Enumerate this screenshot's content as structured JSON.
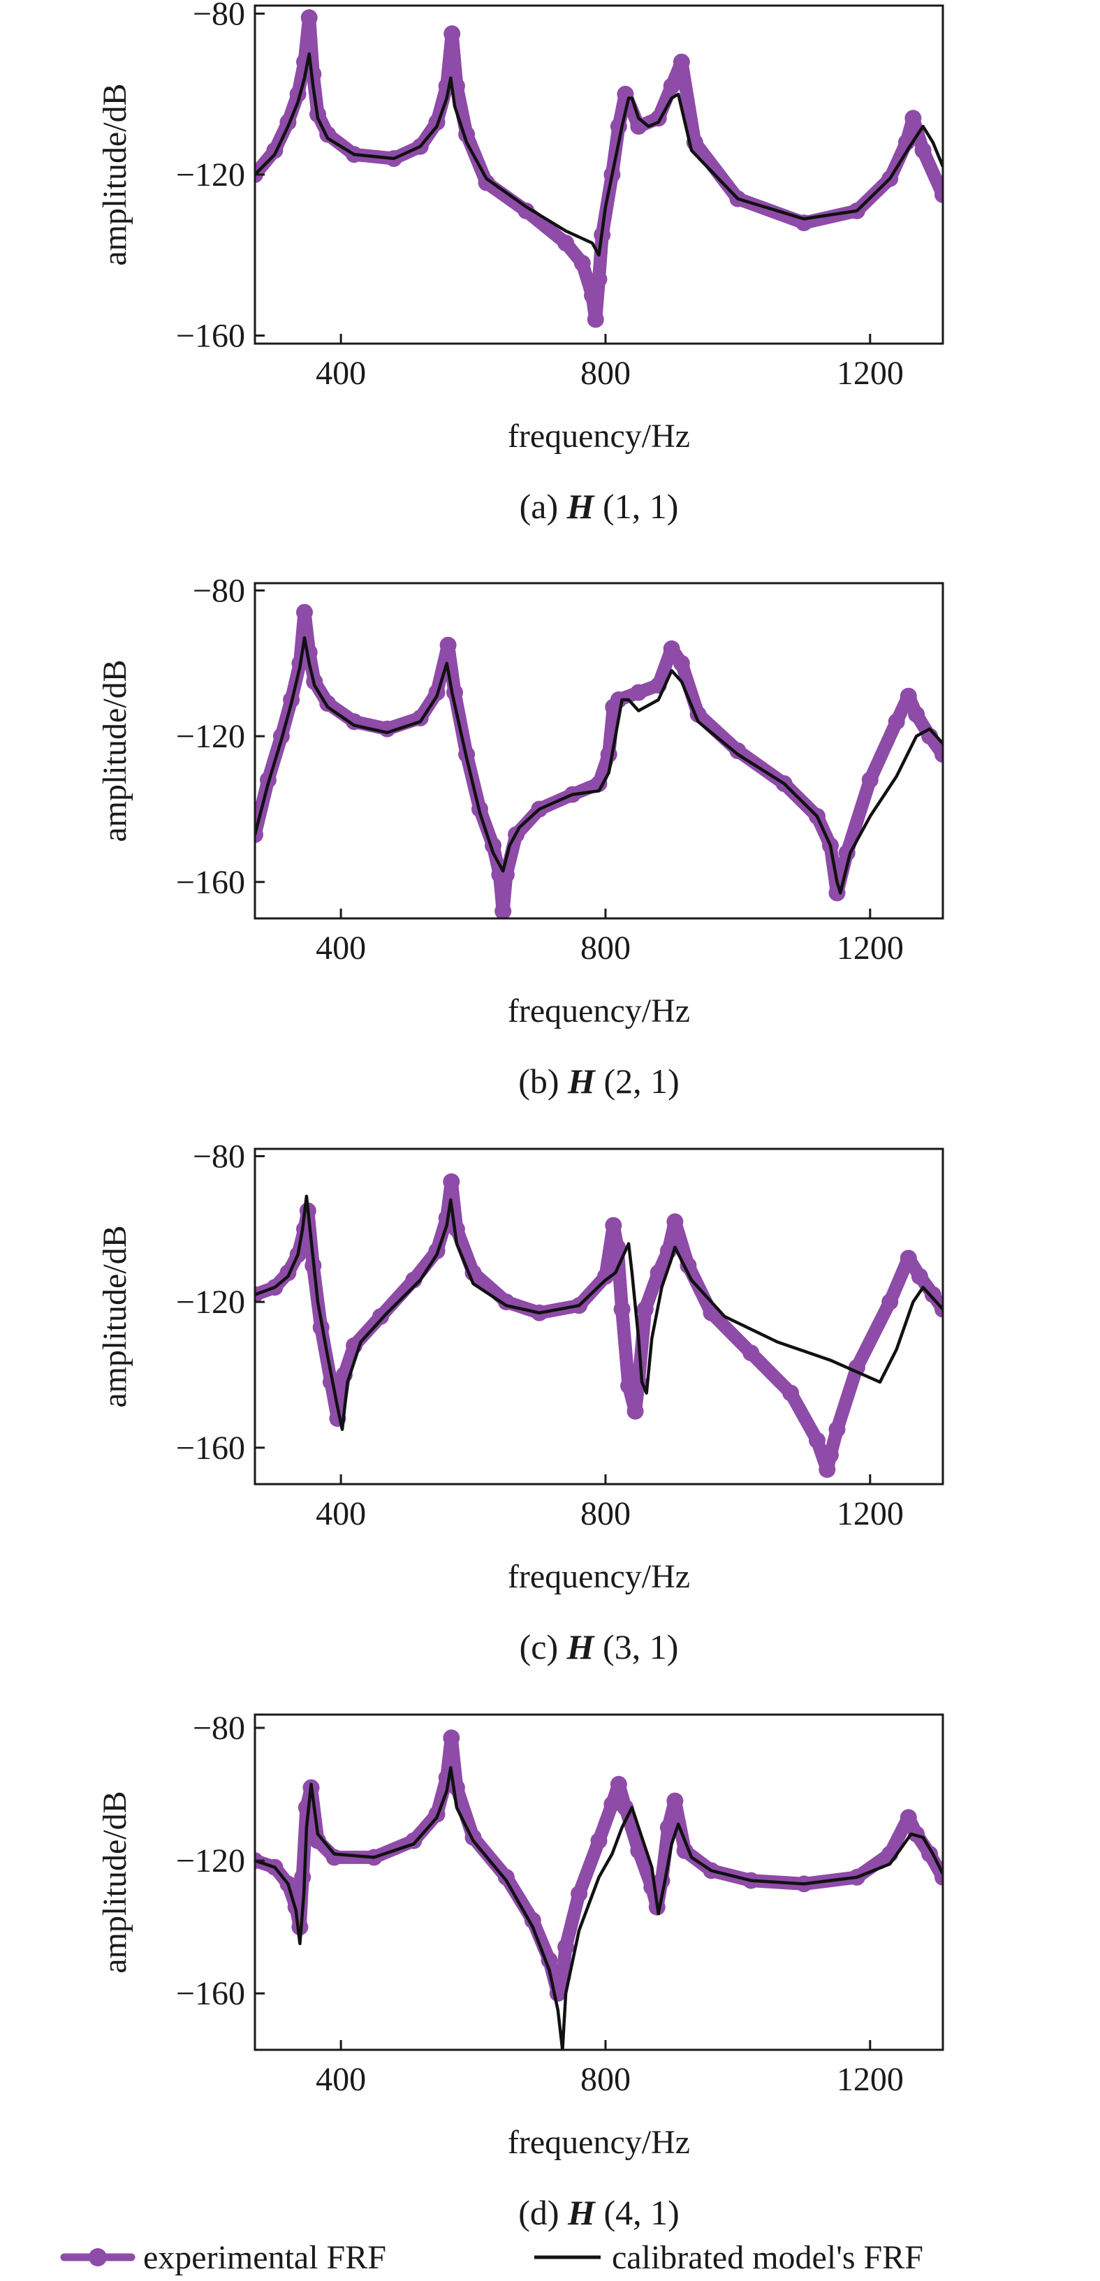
{
  "legend": {
    "items": [
      {
        "label": "experimental FRF",
        "color": "#8e4ba8"
      },
      {
        "label": "calibrated model's FRF",
        "color": "#111111"
      }
    ]
  },
  "chart_data": [
    {
      "type": "line",
      "caption_prefix": "(a) ",
      "caption_symbol": "H",
      "caption_suffix": " (1, 1)",
      "xlabel": "frequency/Hz",
      "ylabel": "amplitude/dB",
      "xlim": [
        270,
        1310
      ],
      "ylim": [
        -162,
        -78
      ],
      "xticks": [
        400,
        800,
        1200
      ],
      "yticks": [
        -80,
        -120,
        -160
      ],
      "grid": false,
      "series": [
        {
          "name": "experimental FRF",
          "style": "thick-dots",
          "x": [
            270,
            300,
            320,
            335,
            345,
            352,
            358,
            365,
            380,
            420,
            480,
            520,
            545,
            560,
            568,
            575,
            590,
            620,
            680,
            740,
            765,
            780,
            785,
            790,
            795,
            810,
            820,
            830,
            850,
            880,
            900,
            915,
            935,
            1000,
            1100,
            1180,
            1230,
            1255,
            1265,
            1280,
            1310
          ],
          "y": [
            -120,
            -114,
            -107,
            -100,
            -92,
            -81,
            -95,
            -105,
            -110,
            -115,
            -116,
            -113,
            -107,
            -98,
            -85,
            -98,
            -110,
            -122,
            -129,
            -137,
            -142,
            -150,
            -156,
            -146,
            -135,
            -120,
            -108,
            -100,
            -108,
            -106,
            -98,
            -92,
            -112,
            -126,
            -132,
            -129,
            -121,
            -112,
            -106,
            -114,
            -125
          ]
        },
        {
          "name": "calibrated model's FRF",
          "style": "thin-line",
          "x": [
            270,
            300,
            320,
            335,
            345,
            352,
            358,
            365,
            380,
            420,
            480,
            520,
            545,
            560,
            566,
            572,
            590,
            620,
            680,
            740,
            780,
            790,
            800,
            815,
            825,
            835,
            840,
            850,
            865,
            880,
            900,
            910,
            930,
            1000,
            1100,
            1180,
            1230,
            1260,
            1280,
            1295,
            1310
          ],
          "y": [
            -120,
            -115,
            -108,
            -102,
            -96,
            -90,
            -98,
            -106,
            -111,
            -115,
            -116,
            -113,
            -108,
            -101,
            -96,
            -103,
            -112,
            -121,
            -128,
            -134,
            -137,
            -140,
            -128,
            -116,
            -108,
            -101,
            -101,
            -106,
            -108,
            -107,
            -101,
            -100,
            -114,
            -126,
            -131,
            -129,
            -121,
            -113,
            -108,
            -112,
            -118
          ]
        }
      ]
    },
    {
      "type": "line",
      "caption_prefix": "(b) ",
      "caption_symbol": "H",
      "caption_suffix": " (2, 1)",
      "xlabel": "frequency/Hz",
      "ylabel": "amplitude/dB",
      "xlim": [
        270,
        1310
      ],
      "ylim": [
        -170,
        -78
      ],
      "xticks": [
        400,
        800,
        1200
      ],
      "yticks": [
        -80,
        -120,
        -160
      ],
      "grid": false,
      "series": [
        {
          "name": "experimental FRF",
          "style": "thick-dots",
          "x": [
            270,
            290,
            310,
            325,
            338,
            345,
            352,
            360,
            380,
            420,
            470,
            520,
            545,
            562,
            572,
            590,
            610,
            630,
            640,
            645,
            650,
            665,
            700,
            750,
            790,
            805,
            812,
            820,
            850,
            880,
            900,
            915,
            940,
            1000,
            1070,
            1120,
            1140,
            1150,
            1165,
            1200,
            1240,
            1258,
            1270,
            1290,
            1310
          ],
          "y": [
            -147,
            -132,
            -120,
            -110,
            -100,
            -86,
            -97,
            -105,
            -111,
            -116,
            -118,
            -115,
            -108,
            -95,
            -108,
            -125,
            -140,
            -150,
            -158,
            -168,
            -158,
            -147,
            -140,
            -136,
            -133,
            -125,
            -112,
            -110,
            -108,
            -106,
            -96,
            -100,
            -114,
            -124,
            -133,
            -142,
            -150,
            -163,
            -152,
            -132,
            -116,
            -109,
            -114,
            -120,
            -125
          ]
        },
        {
          "name": "calibrated model's FRF",
          "style": "thin-line",
          "x": [
            270,
            290,
            310,
            325,
            338,
            345,
            352,
            360,
            380,
            420,
            470,
            520,
            545,
            560,
            568,
            590,
            610,
            630,
            645,
            655,
            670,
            700,
            750,
            790,
            805,
            815,
            825,
            835,
            850,
            880,
            900,
            915,
            940,
            1000,
            1070,
            1120,
            1140,
            1150,
            1155,
            1170,
            1200,
            1240,
            1270,
            1290,
            1310
          ],
          "y": [
            -147,
            -133,
            -121,
            -111,
            -101,
            -93,
            -100,
            -106,
            -112,
            -117,
            -119,
            -116,
            -109,
            -100,
            -108,
            -126,
            -141,
            -152,
            -157,
            -150,
            -145,
            -140,
            -136,
            -135,
            -130,
            -120,
            -110,
            -110,
            -113,
            -110,
            -102,
            -105,
            -116,
            -125,
            -133,
            -142,
            -150,
            -160,
            -163,
            -152,
            -142,
            -131,
            -120,
            -118,
            -122
          ]
        }
      ]
    },
    {
      "type": "line",
      "caption_prefix": "(c) ",
      "caption_symbol": "H",
      "caption_suffix": " (3, 1)",
      "xlabel": "frequency/Hz",
      "ylabel": "amplitude/dB",
      "xlim": [
        270,
        1310
      ],
      "ylim": [
        -170,
        -78
      ],
      "xticks": [
        400,
        800,
        1200
      ],
      "yticks": [
        -80,
        -120,
        -160
      ],
      "grid": false,
      "series": [
        {
          "name": "experimental FRF",
          "style": "thick-dots",
          "x": [
            270,
            300,
            320,
            335,
            345,
            350,
            358,
            370,
            385,
            395,
            405,
            420,
            460,
            510,
            545,
            560,
            567,
            575,
            600,
            650,
            700,
            760,
            800,
            812,
            818,
            825,
            835,
            845,
            850,
            860,
            880,
            895,
            905,
            925,
            960,
            1020,
            1080,
            1120,
            1135,
            1140,
            1150,
            1180,
            1230,
            1258,
            1275,
            1295,
            1310
          ],
          "y": [
            -118,
            -116,
            -112,
            -107,
            -100,
            -95,
            -110,
            -127,
            -142,
            -152,
            -140,
            -132,
            -124,
            -114,
            -106,
            -97,
            -87,
            -100,
            -112,
            -120,
            -123,
            -121,
            -113,
            -99,
            -105,
            -122,
            -143,
            -150,
            -142,
            -122,
            -112,
            -106,
            -98,
            -110,
            -123,
            -134,
            -145,
            -158,
            -166,
            -162,
            -155,
            -138,
            -120,
            -108,
            -113,
            -118,
            -122
          ]
        },
        {
          "name": "calibrated model's FRF",
          "style": "thin-line",
          "x": [
            270,
            300,
            320,
            335,
            342,
            348,
            355,
            365,
            380,
            395,
            402,
            410,
            430,
            470,
            520,
            545,
            560,
            566,
            575,
            600,
            650,
            700,
            760,
            800,
            815,
            835,
            840,
            850,
            855,
            862,
            870,
            885,
            900,
            905,
            930,
            980,
            1060,
            1140,
            1190,
            1215,
            1240,
            1265,
            1280,
            1295,
            1310
          ],
          "y": [
            -118,
            -116,
            -113,
            -107,
            -100,
            -91,
            -103,
            -120,
            -135,
            -149,
            -155,
            -142,
            -131,
            -123,
            -114,
            -107,
            -99,
            -92,
            -104,
            -115,
            -121,
            -123,
            -121,
            -114,
            -112,
            -104,
            -112,
            -130,
            -142,
            -145,
            -130,
            -116,
            -108,
            -105,
            -114,
            -124,
            -131,
            -136,
            -140,
            -142,
            -133,
            -120,
            -116,
            -119,
            -122
          ]
        }
      ]
    },
    {
      "type": "line",
      "caption_prefix": "(d) ",
      "caption_symbol": "H",
      "caption_suffix": " (4, 1)",
      "xlabel": "frequency/Hz",
      "ylabel": "amplitude/dB",
      "xlim": [
        270,
        1310
      ],
      "ylim": [
        -177,
        -76
      ],
      "xticks": [
        400,
        800,
        1200
      ],
      "yticks": [
        -80,
        -120,
        -160
      ],
      "grid": false,
      "series": [
        {
          "name": "experimental FRF",
          "style": "thick-dots",
          "x": [
            270,
            300,
            320,
            332,
            338,
            342,
            348,
            355,
            365,
            390,
            450,
            510,
            545,
            560,
            567,
            575,
            600,
            650,
            690,
            715,
            728,
            735,
            740,
            760,
            790,
            810,
            820,
            830,
            850,
            870,
            878,
            885,
            895,
            905,
            920,
            960,
            1020,
            1100,
            1180,
            1230,
            1258,
            1270,
            1290,
            1310
          ],
          "y": [
            -120,
            -122,
            -127,
            -134,
            -140,
            -125,
            -104,
            -98,
            -114,
            -119,
            -119,
            -114,
            -106,
            -95,
            -83,
            -98,
            -113,
            -125,
            -138,
            -150,
            -160,
            -155,
            -146,
            -130,
            -114,
            -103,
            -97,
            -104,
            -117,
            -128,
            -134,
            -126,
            -110,
            -102,
            -117,
            -123,
            -126,
            -127,
            -125,
            -118,
            -107,
            -112,
            -118,
            -125
          ]
        },
        {
          "name": "calibrated model's FRF",
          "style": "thin-line",
          "x": [
            270,
            300,
            320,
            332,
            338,
            344,
            348,
            355,
            365,
            390,
            450,
            510,
            545,
            560,
            566,
            575,
            600,
            650,
            690,
            715,
            728,
            735,
            740,
            760,
            790,
            810,
            825,
            840,
            850,
            870,
            880,
            890,
            900,
            910,
            930,
            960,
            1020,
            1100,
            1180,
            1230,
            1262,
            1280,
            1295,
            1310
          ],
          "y": [
            -120,
            -122,
            -127,
            -135,
            -145,
            -130,
            -110,
            -97,
            -112,
            -118,
            -119,
            -115,
            -107,
            -99,
            -92,
            -104,
            -114,
            -126,
            -140,
            -153,
            -165,
            -177,
            -160,
            -141,
            -125,
            -118,
            -110,
            -104,
            -110,
            -122,
            -136,
            -126,
            -115,
            -109,
            -119,
            -123,
            -126,
            -127,
            -125,
            -121,
            -112,
            -113,
            -118,
            -124
          ]
        }
      ]
    }
  ]
}
